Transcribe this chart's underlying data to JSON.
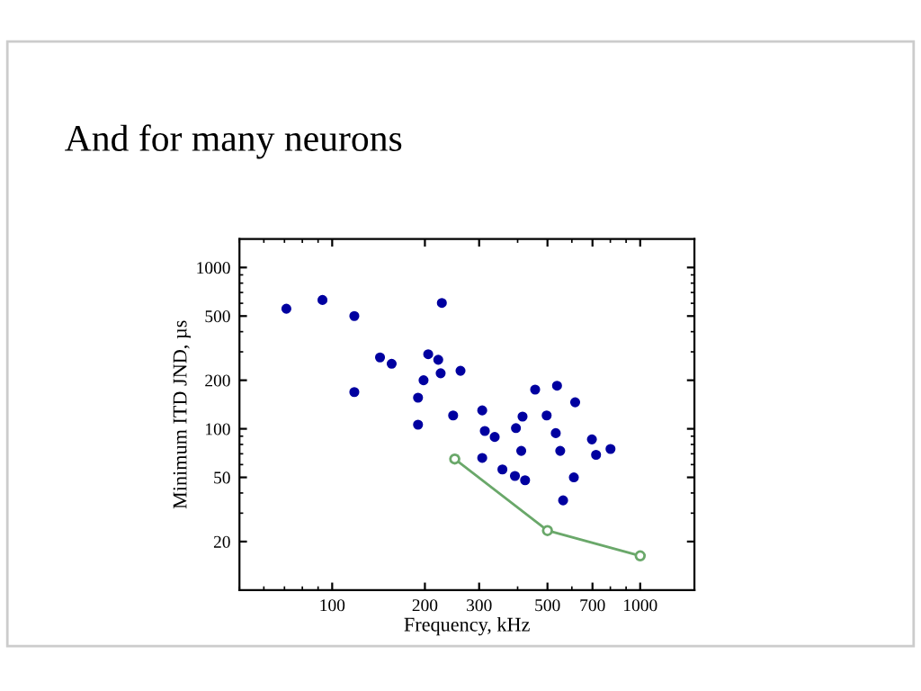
{
  "chart_data": {
    "type": "scatter",
    "title": "And for many neurons",
    "xlabel": "Frequency, kHz",
    "ylabel": "Minimum ITD JND, µs",
    "log": "xy",
    "xlim": [
      50,
      1500
    ],
    "ylim": [
      10,
      1500
    ],
    "xticks": [
      100,
      200,
      300,
      500,
      700,
      1000
    ],
    "yticks": [
      20,
      50,
      100,
      200,
      500,
      1000
    ],
    "grid": false,
    "series": [
      {
        "color": "#0000a0",
        "marker": "circle",
        "x": [
          71,
          93,
          118,
          118,
          143,
          156,
          227,
          205,
          221,
          198,
          225,
          261,
          190,
          190,
          247,
          307,
          313,
          337,
          307,
          357,
          395,
          415,
          411,
          392,
          423,
          456,
          497,
          537,
          532,
          550,
          615,
          562,
          609,
          697,
          719,
          801
        ],
        "values": [
          555,
          629,
          500,
          169,
          277,
          253,
          603,
          290,
          268,
          200,
          221,
          229,
          156,
          106,
          121,
          130,
          97,
          89,
          66,
          56,
          101,
          119,
          73,
          51,
          48,
          175,
          121,
          185,
          94,
          73,
          146,
          36,
          50,
          86,
          69,
          75
        ]
      },
      {
        "type": "line",
        "color": "#6aa86a",
        "marker": "circle",
        "line_style": "solid",
        "x": [
          250,
          500,
          1000
        ],
        "values": [
          65,
          23.4,
          16.3
        ]
      }
    ]
  }
}
